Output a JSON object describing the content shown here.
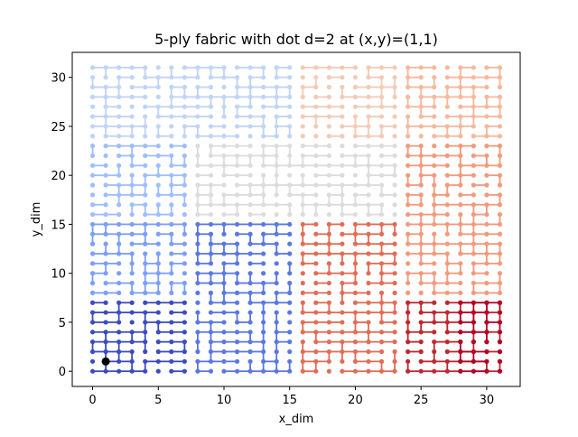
{
  "chart_data": {
    "type": "line",
    "title": "5-ply fabric with dot d=2 at (x,y)=(1,1)",
    "xlabel": "x_dim",
    "ylabel": "y_dim",
    "xlim": [
      -1.55,
      32.55
    ],
    "ylim": [
      -1.55,
      32.55
    ],
    "xticks": [
      0,
      5,
      10,
      15,
      20,
      25,
      30
    ],
    "yticks": [
      0,
      5,
      10,
      15,
      20,
      25,
      30
    ],
    "grid": false,
    "colormap": "coolwarm",
    "series": [
      {
        "region": [
          0,
          7,
          0,
          7
        ],
        "color": "#3b4cc0"
      },
      {
        "region": [
          8,
          15,
          0,
          15
        ],
        "color": "#5a78e4"
      },
      {
        "region": [
          0,
          7,
          8,
          15
        ],
        "color": "#7b9ff9"
      },
      {
        "region": [
          0,
          7,
          16,
          23
        ],
        "color": "#9ebeff"
      },
      {
        "region": [
          0,
          15,
          24,
          31
        ],
        "color": "#c0d4f5"
      },
      {
        "region": [
          8,
          23,
          16,
          23
        ],
        "color": "#dddcdc"
      },
      {
        "region": [
          16,
          23,
          24,
          31
        ],
        "color": "#f2cbb7"
      },
      {
        "region": [
          24,
          31,
          24,
          31
        ],
        "color": "#f7b89c"
      },
      {
        "region": [
          24,
          31,
          8,
          23
        ],
        "color": "#f49a7b"
      },
      {
        "region": [
          16,
          23,
          0,
          15
        ],
        "color": "#e36c55"
      },
      {
        "region": [
          24,
          31,
          0,
          7
        ],
        "color": "#c0282f"
      },
      {
        "region": [
          28,
          31,
          0,
          7
        ],
        "color": "#b40426"
      }
    ],
    "dot": {
      "x": 1,
      "y": 1,
      "color": "#000000"
    }
  }
}
